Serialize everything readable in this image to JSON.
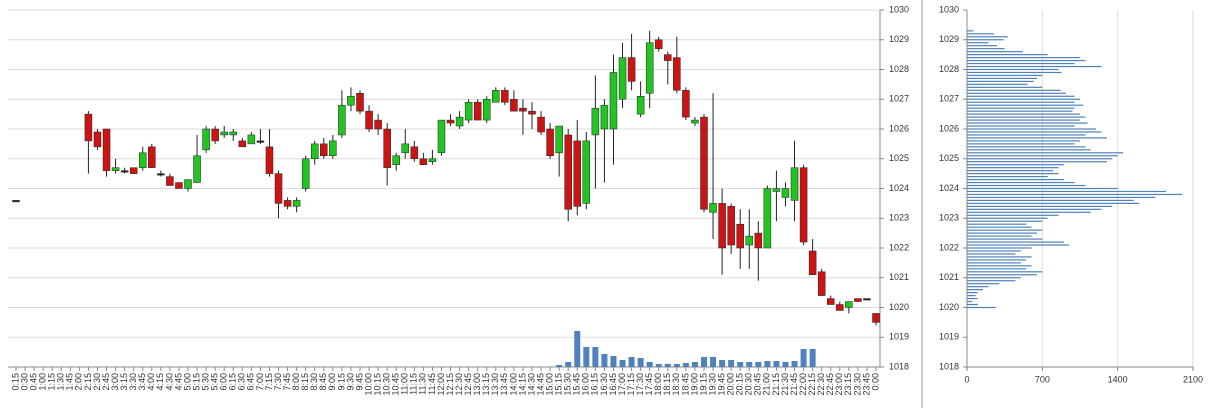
{
  "chart_data": [
    {
      "type": "candlestick",
      "categories": [
        "0:15",
        "0:30",
        "0:45",
        "1:00",
        "1:15",
        "1:30",
        "1:45",
        "2:00",
        "2:15",
        "2:30",
        "2:45",
        "3:00",
        "3:15",
        "3:30",
        "3:45",
        "4:00",
        "4:15",
        "4:30",
        "4:45",
        "5:00",
        "5:15",
        "5:30",
        "5:45",
        "6:00",
        "6:15",
        "6:30",
        "6:45",
        "7:00",
        "7:15",
        "7:30",
        "7:45",
        "8:00",
        "8:15",
        "8:30",
        "8:45",
        "9:00",
        "9:15",
        "9:30",
        "9:45",
        "10:00",
        "10:15",
        "10:30",
        "10:45",
        "11:00",
        "11:15",
        "11:30",
        "11:45",
        "12:00",
        "12:15",
        "12:30",
        "12:45",
        "13:00",
        "13:15",
        "13:30",
        "13:45",
        "14:00",
        "14:15",
        "14:30",
        "14:45",
        "15:00",
        "15:15",
        "15:30",
        "15:45",
        "16:00",
        "16:15",
        "16:30",
        "16:45",
        "17:00",
        "17:15",
        "17:30",
        "17:45",
        "18:00",
        "18:15",
        "18:30",
        "18:45",
        "19:00",
        "19:15",
        "19:30",
        "19:45",
        "20:00",
        "20:15",
        "20:30",
        "20:45",
        "21:00",
        "21:15",
        "21:30",
        "21:45",
        "22:00",
        "22:15",
        "22:30",
        "22:45",
        "23:00",
        "23:15",
        "23:30",
        "23:45",
        "0:00"
      ],
      "open": [
        1023.6,
        null,
        null,
        null,
        null,
        null,
        null,
        null,
        1026.5,
        1025.9,
        1026.0,
        1024.6,
        1024.6,
        1024.7,
        1024.7,
        1025.4,
        1024.5,
        1024.4,
        1024.2,
        1024.0,
        1024.2,
        1025.3,
        1026.0,
        1025.8,
        1025.8,
        1025.6,
        1025.5,
        1025.6,
        1025.4,
        1024.5,
        1023.6,
        1023.4,
        1024.0,
        1025.0,
        1025.5,
        1025.1,
        1025.8,
        1026.8,
        1027.2,
        1026.6,
        1026.3,
        1026.0,
        1024.8,
        1025.2,
        1025.4,
        1025.0,
        1024.9,
        1025.2,
        1026.3,
        1026.1,
        1026.3,
        1026.9,
        1026.3,
        1026.9,
        1027.3,
        1027.0,
        1026.7,
        1026.6,
        1026.4,
        1026.0,
        1025.2,
        1025.8,
        1025.6,
        1023.5,
        1025.8,
        1026.0,
        1026.0,
        1027.0,
        1028.4,
        1026.5,
        1027.2,
        1029.0,
        1028.5,
        1028.4,
        1027.3,
        1026.2,
        1026.4,
        1023.2,
        1023.5,
        1023.4,
        1022.8,
        1022.1,
        1022.5,
        1022.0,
        1023.9,
        1023.7,
        1023.6,
        1024.7,
        1021.9,
        1021.2,
        1020.3,
        1020.1,
        1020.0,
        1020.3,
        1020.3,
        1019.8
      ],
      "high": [
        1023.6,
        null,
        null,
        null,
        null,
        null,
        null,
        null,
        1026.6,
        1026.0,
        1026.0,
        1025.0,
        1024.7,
        1024.7,
        1025.4,
        1025.5,
        1024.6,
        1024.5,
        1024.2,
        1024.3,
        1025.8,
        1026.1,
        1026.1,
        1026.1,
        1026.0,
        1025.7,
        1025.9,
        1026.0,
        1026.0,
        1024.6,
        1023.7,
        1023.7,
        1025.1,
        1025.6,
        1025.7,
        1025.8,
        1027.3,
        1027.4,
        1027.3,
        1026.8,
        1026.5,
        1026.2,
        1025.2,
        1026.0,
        1025.6,
        1025.2,
        1025.3,
        1026.3,
        1026.5,
        1026.6,
        1027.0,
        1027.0,
        1027.1,
        1027.4,
        1027.4,
        1027.3,
        1027.0,
        1026.9,
        1026.6,
        1026.2,
        1026.1,
        1026.0,
        1026.3,
        1025.9,
        1027.8,
        1027.0,
        1028.5,
        1028.9,
        1029.2,
        1027.6,
        1029.3,
        1029.1,
        1028.6,
        1029.1,
        1027.4,
        1026.4,
        1026.5,
        1027.2,
        1024.0,
        1023.5,
        1023.3,
        1023.3,
        1022.9,
        1024.1,
        1024.6,
        1024.2,
        1025.6,
        1024.8,
        1022.3,
        1021.3,
        1020.4,
        1020.2,
        1020.2,
        1020.3,
        1020.3,
        1019.8
      ],
      "low": [
        1023.6,
        null,
        null,
        null,
        null,
        null,
        null,
        null,
        1024.5,
        1025.3,
        1024.4,
        1024.5,
        1024.5,
        1024.5,
        1024.6,
        1024.7,
        1024.4,
        1024.1,
        1024.0,
        1023.9,
        1024.2,
        1025.2,
        1025.5,
        1025.7,
        1025.6,
        1025.4,
        1025.5,
        1025.5,
        1024.4,
        1023.0,
        1023.3,
        1023.2,
        1023.9,
        1024.8,
        1025.0,
        1025.0,
        1025.7,
        1026.6,
        1026.5,
        1025.9,
        1025.8,
        1024.1,
        1024.6,
        1025.0,
        1024.9,
        1024.8,
        1024.8,
        1025.1,
        1026.1,
        1026.0,
        1026.2,
        1026.3,
        1026.2,
        1026.9,
        1026.8,
        1026.6,
        1025.8,
        1026.0,
        1025.8,
        1025.0,
        1024.4,
        1022.9,
        1023.1,
        1023.3,
        1024.0,
        1024.2,
        1024.8,
        1026.7,
        1027.3,
        1026.4,
        1026.7,
        1028.6,
        1027.5,
        1027.2,
        1026.3,
        1026.1,
        1023.2,
        1022.3,
        1021.1,
        1021.8,
        1021.3,
        1021.3,
        1020.9,
        1022.0,
        1022.9,
        1023.4,
        1022.9,
        1022.1,
        1021.1,
        1020.4,
        1020.1,
        1019.9,
        1019.8,
        1020.2,
        1020.3,
        1019.4
      ],
      "close": [
        1023.6,
        null,
        null,
        null,
        null,
        null,
        null,
        null,
        1025.6,
        1025.4,
        1024.6,
        1024.7,
        1024.6,
        1024.5,
        1025.2,
        1024.7,
        1024.5,
        1024.1,
        1024.0,
        1024.3,
        1025.1,
        1026.0,
        1025.6,
        1025.9,
        1025.9,
        1025.4,
        1025.8,
        1025.6,
        1024.5,
        1023.5,
        1023.4,
        1023.6,
        1025.0,
        1025.5,
        1025.1,
        1025.6,
        1026.8,
        1027.1,
        1026.6,
        1026.0,
        1026.0,
        1024.7,
        1025.1,
        1025.5,
        1025.0,
        1024.8,
        1025.0,
        1026.3,
        1026.2,
        1026.4,
        1026.9,
        1026.3,
        1027.0,
        1027.3,
        1026.9,
        1026.6,
        1026.6,
        1026.5,
        1025.9,
        1025.1,
        1026.1,
        1023.3,
        1023.4,
        1025.6,
        1026.7,
        1026.8,
        1027.9,
        1028.4,
        1027.6,
        1027.1,
        1028.9,
        1028.7,
        1028.3,
        1027.3,
        1026.4,
        1026.3,
        1023.3,
        1023.5,
        1022.0,
        1022.1,
        1022.0,
        1022.4,
        1022.0,
        1024.0,
        1024.0,
        1024.0,
        1024.7,
        1022.2,
        1021.1,
        1020.4,
        1020.1,
        1019.9,
        1020.2,
        1020.2,
        1020.3,
        1019.5
      ],
      "volume": [
        null,
        null,
        null,
        null,
        null,
        null,
        null,
        null,
        null,
        null,
        null,
        null,
        null,
        null,
        null,
        null,
        null,
        null,
        null,
        null,
        null,
        null,
        null,
        null,
        null,
        null,
        null,
        null,
        null,
        null,
        null,
        null,
        null,
        null,
        null,
        null,
        null,
        null,
        null,
        null,
        null,
        null,
        null,
        null,
        null,
        null,
        null,
        null,
        null,
        null,
        null,
        null,
        null,
        null,
        null,
        null,
        null,
        null,
        null,
        null,
        2,
        5,
        36,
        20,
        20,
        13,
        11,
        7,
        10,
        9,
        5,
        3,
        3,
        3,
        4,
        5,
        10,
        10,
        7,
        7,
        5,
        5,
        5,
        6,
        6,
        5,
        6,
        18,
        18,
        null,
        null,
        null,
        null,
        null,
        null,
        null
      ],
      "ylim": [
        1018,
        1030
      ],
      "yticks": [
        1018,
        1019,
        1020,
        1021,
        1022,
        1023,
        1024,
        1025,
        1026,
        1027,
        1028,
        1029,
        1030
      ],
      "up_color": "#22c322",
      "down_color": "#cc1414",
      "volume_color": "#4f81bd",
      "grid": true
    },
    {
      "type": "hbar",
      "levels": [
        1029.3,
        1029.2,
        1029.1,
        1029.0,
        1028.9,
        1028.8,
        1028.7,
        1028.6,
        1028.5,
        1028.4,
        1028.3,
        1028.2,
        1028.1,
        1028.0,
        1027.9,
        1027.8,
        1027.7,
        1027.6,
        1027.5,
        1027.4,
        1027.3,
        1027.2,
        1027.1,
        1027.0,
        1026.9,
        1026.8,
        1026.7,
        1026.6,
        1026.5,
        1026.4,
        1026.3,
        1026.2,
        1026.1,
        1026.0,
        1025.9,
        1025.8,
        1025.7,
        1025.6,
        1025.5,
        1025.4,
        1025.3,
        1025.2,
        1025.1,
        1025.0,
        1024.9,
        1024.8,
        1024.7,
        1024.6,
        1024.5,
        1024.4,
        1024.3,
        1024.2,
        1024.1,
        1024.0,
        1023.9,
        1023.8,
        1023.7,
        1023.6,
        1023.5,
        1023.4,
        1023.3,
        1023.2,
        1023.1,
        1023.0,
        1022.9,
        1022.8,
        1022.7,
        1022.6,
        1022.5,
        1022.4,
        1022.3,
        1022.2,
        1022.1,
        1022.0,
        1021.9,
        1021.8,
        1021.7,
        1021.6,
        1021.5,
        1021.4,
        1021.3,
        1021.2,
        1021.1,
        1021.0,
        1020.9,
        1020.8,
        1020.7,
        1020.6,
        1020.5,
        1020.4,
        1020.3,
        1020.2,
        1020.1,
        1020.0
      ],
      "values": [
        60,
        250,
        380,
        340,
        200,
        280,
        350,
        520,
        750,
        1050,
        1100,
        1000,
        1250,
        850,
        880,
        700,
        650,
        620,
        560,
        700,
        870,
        920,
        1000,
        1050,
        1000,
        1080,
        1000,
        980,
        1050,
        1100,
        1050,
        1120,
        1000,
        1200,
        1250,
        1100,
        1300,
        1050,
        1000,
        1100,
        1150,
        1450,
        1400,
        1350,
        1300,
        900,
        850,
        800,
        850,
        750,
        900,
        1000,
        1100,
        1400,
        1850,
        2000,
        1750,
        1550,
        1600,
        1350,
        1250,
        1150,
        850,
        750,
        700,
        550,
        600,
        700,
        650,
        600,
        700,
        900,
        950,
        600,
        500,
        450,
        600,
        550,
        500,
        600,
        550,
        700,
        650,
        500,
        450,
        300,
        200,
        150,
        100,
        80,
        100,
        50,
        100,
        270
      ],
      "ylim": [
        1018,
        1030
      ],
      "yticks": [
        1018,
        1019,
        1020,
        1021,
        1022,
        1023,
        1024,
        1025,
        1026,
        1027,
        1028,
        1029,
        1030
      ],
      "xlim": [
        0,
        2100
      ],
      "xticks": [
        0,
        700,
        1400,
        2100
      ],
      "color": "#4f81bd",
      "grid": true
    }
  ]
}
